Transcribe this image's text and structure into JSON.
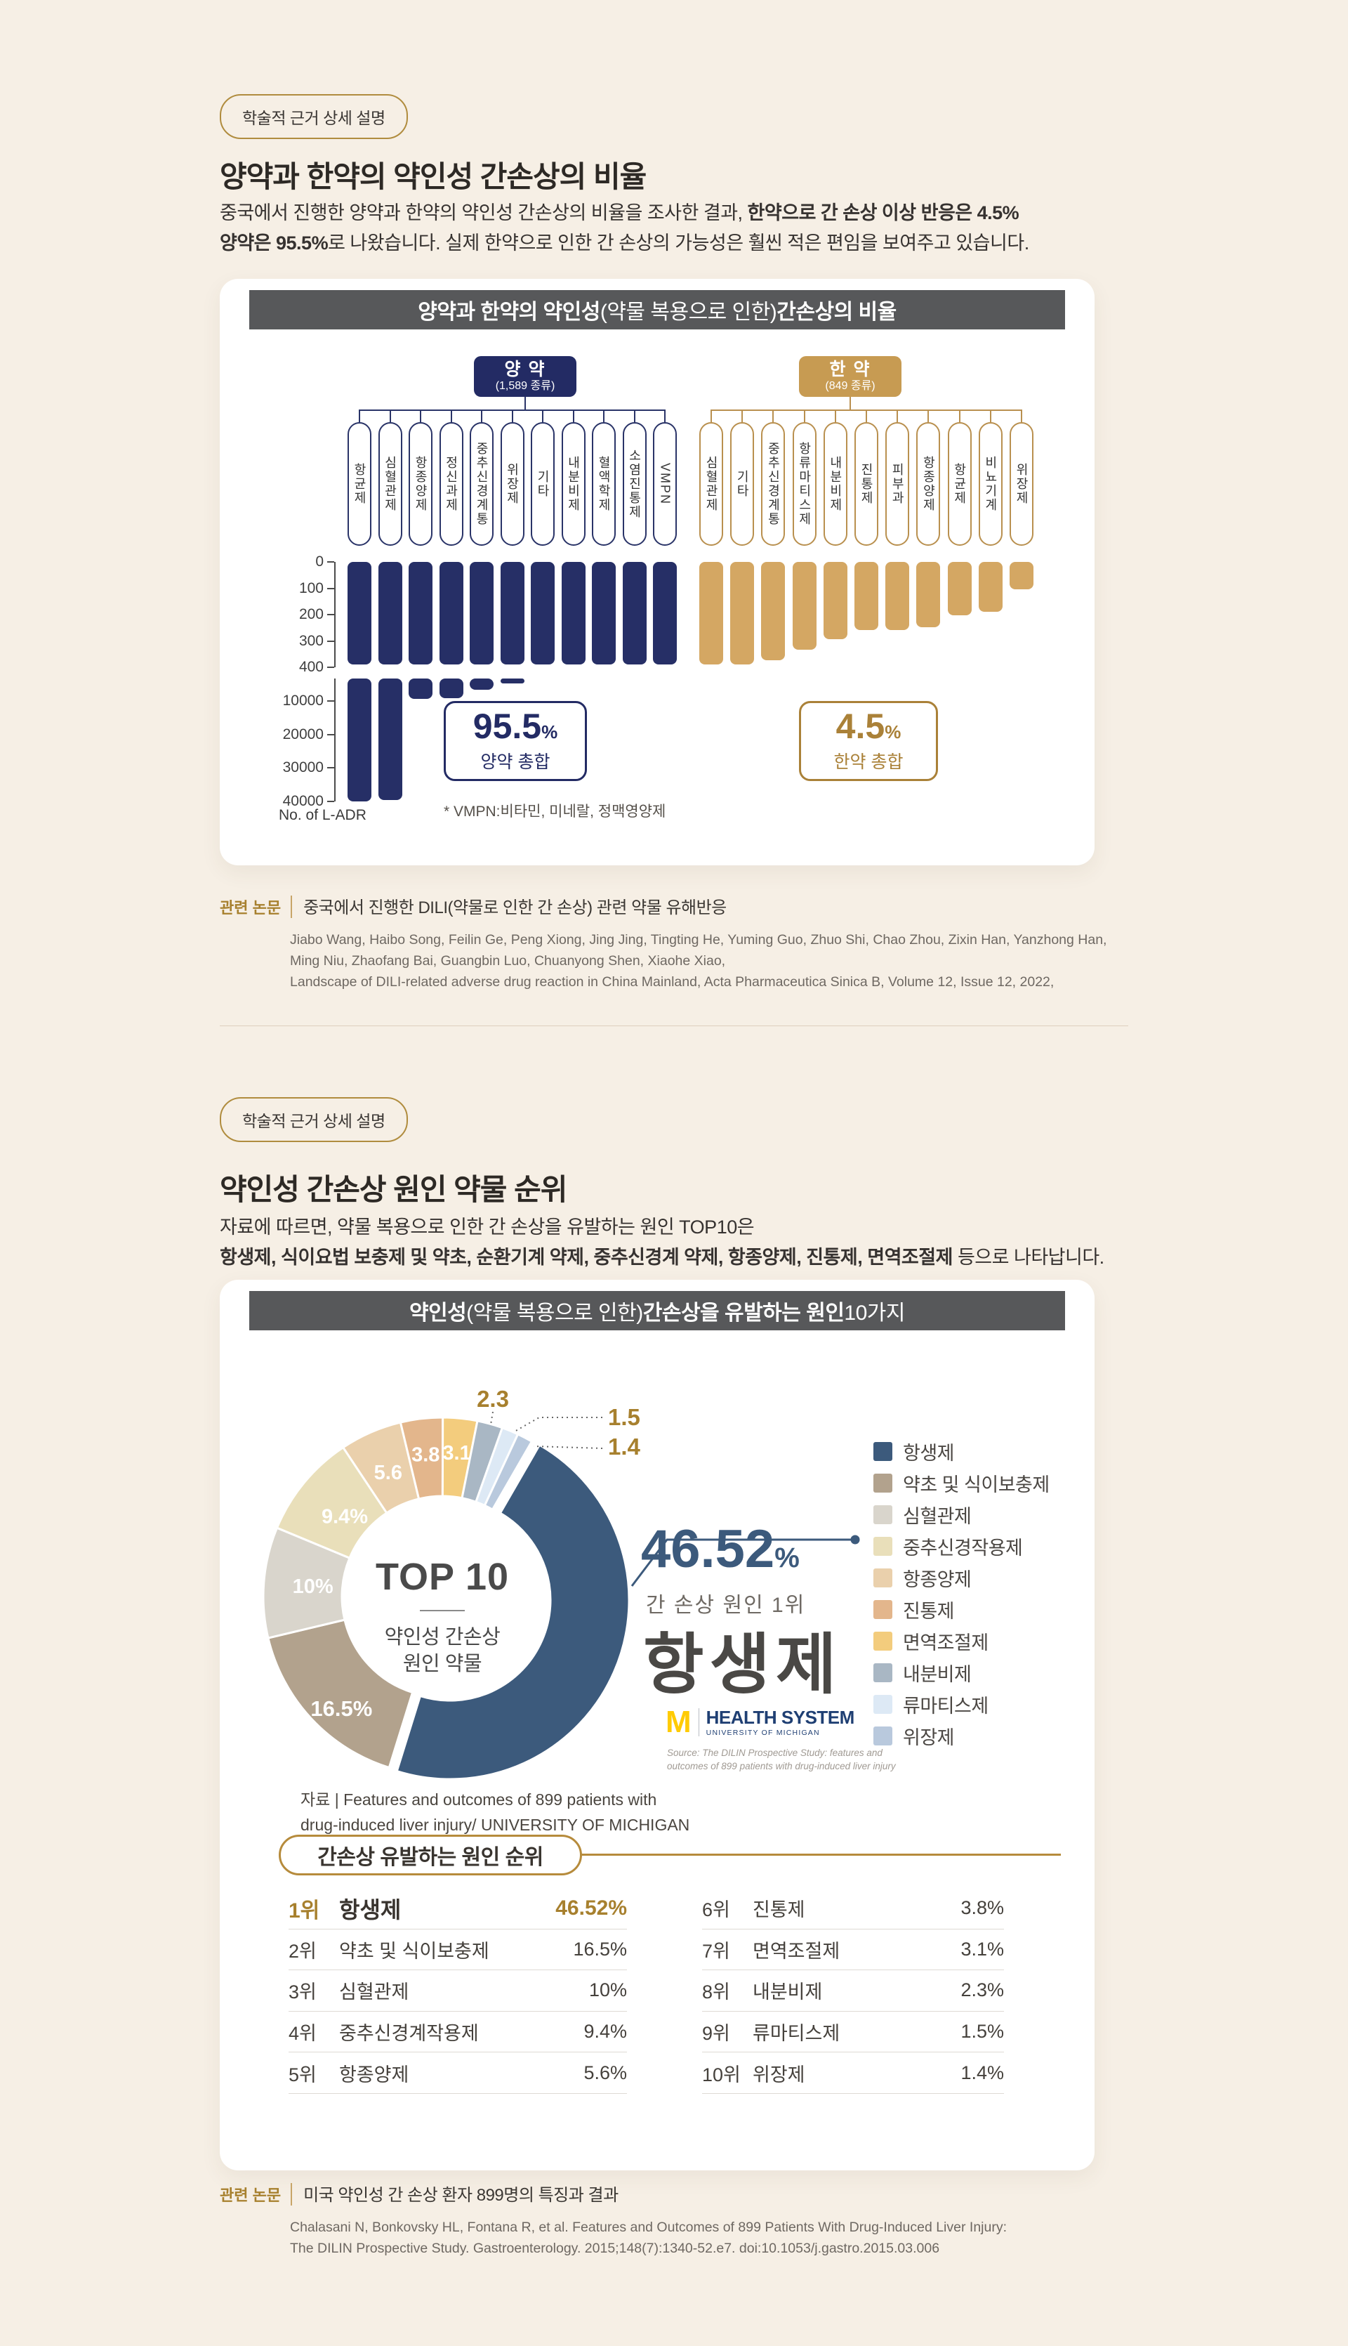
{
  "colors": {
    "page_bg": "#f6efe5",
    "gold_accent": "#b08c3e",
    "gold_text": "#a7802e",
    "navy": "#262f66",
    "navy_node": "#232b64",
    "gold_bar": "#d4a763",
    "gold_node": "#c79b52",
    "header_gray": "#57585a",
    "donut_navy": "#3c5a7c"
  },
  "section1": {
    "badge": "학술적 근거 상세 설명",
    "title": "양약과 한약의 약인성 간손상의 비율",
    "para": {
      "l1_normal": "중국에서 진행한 양약과 한약의 약인성 간손상의 비율을 조사한 결과, ",
      "l1_bold": "한약으로 간 손상 이상 반응은 4.5%",
      "l2_bold": "양약은 95.5%",
      "l2_normal": "로 나왔습니다. 실제 한약으로 인한 간 손상의 가능성은 훨씬 적은 편임을 보여주고 있습니다."
    },
    "chart_header": {
      "bold1": "양약과 한약의 약인성",
      "light": "(약물 복용으로 인한) ",
      "bold2": "간손상의 비율"
    },
    "summary_west": {
      "pct": "95.5",
      "unit": "%",
      "label": "양약 총합"
    },
    "summary_herb": {
      "pct": "4.5",
      "unit": "%",
      "label": "한약 총합"
    },
    "footnote": "* VMPN:비타민, 미네랄, 정맥영양제",
    "axis_caption": "No. of L-ADR",
    "citation": {
      "label": "관련 논문",
      "title": "중국에서 진행한 DILI(약물로 인한 간 손상) 관련 약물 유해반응",
      "lines": [
        "Jiabo Wang, Haibo Song, Feilin Ge, Peng Xiong, Jing Jing, Tingting He, Yuming Guo, Zhuo Shi, Chao Zhou, Zixin Han, Yanzhong Han,",
        "Ming Niu, Zhaofang Bai, Guangbin Luo, Chuanyong Shen, Xiaohe Xiao,",
        "Landscape of DILI-related adverse drug reaction in China Mainland, Acta Pharmaceutica Sinica B, Volume 12, Issue 12, 2022,"
      ]
    }
  },
  "section2": {
    "badge": "학술적 근거 상세 설명",
    "title": "약인성 간손상 원인 약물 순위",
    "para": {
      "l1_normal": "자료에 따르면, 약물 복용으로 인한 간 손상을 유발하는 원인 TOP10은",
      "l2_bold": "항생제, 식이요법 보충제 및 약초, 순환기계 약제, 중추신경계 약제, 항종양제, 진통제, 면역조절제",
      "l2_normal": " 등으로 나타납니다."
    },
    "chart_header": {
      "bold1": "약인성",
      "light": "(약물 복용으로 인한) ",
      "bold2": "간손상을 유발하는 원인 ",
      "light2": "10가지"
    },
    "donut_center": {
      "top": "TOP 10",
      "sub1": "약인성 간손상",
      "sub2": "원인 약물"
    },
    "callout": {
      "pct": "46.52",
      "unit": "%",
      "sub": "간 손상 원인 1위",
      "drug": "항생제"
    },
    "logo": {
      "m": "M",
      "title": "HEALTH SYSTEM",
      "sub": "UNIVERSITY OF MICHIGAN"
    },
    "source_note": [
      "Source: The DILIN Prospective Study:  features and",
      "outcomes of 899 patients with drug-induced liver injury"
    ],
    "data_note": [
      "자료 |  Features and outcomes of 899 patients with",
      "drug-induced liver injury/ UNIVERSITY OF MICHIGAN"
    ],
    "ranking": {
      "title": "간손상 유발하는 원인 순위",
      "rows_left": [
        {
          "rank": "1위",
          "name": "항생제",
          "value": "46.52%"
        },
        {
          "rank": "2위",
          "name": "약초 및 식이보충제",
          "value": "16.5%"
        },
        {
          "rank": "3위",
          "name": "심혈관제",
          "value": "10%"
        },
        {
          "rank": "4위",
          "name": "중추신경계작용제",
          "value": "9.4%"
        },
        {
          "rank": "5위",
          "name": "항종양제",
          "value": "5.6%"
        }
      ],
      "rows_right": [
        {
          "rank": "6위",
          "name": "진통제",
          "value": "3.8%"
        },
        {
          "rank": "7위",
          "name": "면역조절제",
          "value": "3.1%"
        },
        {
          "rank": "8위",
          "name": "내분비제",
          "value": "2.3%"
        },
        {
          "rank": "9위",
          "name": "류마티스제",
          "value": "1.5%"
        },
        {
          "rank": "10위",
          "name": "위장제",
          "value": "1.4%"
        }
      ]
    },
    "citation": {
      "label": "관련 논문",
      "title": "미국 약인성 간 손상 환자 899명의 특징과 결과",
      "lines": [
        "Chalasani N, Bonkovsky HL, Fontana R, et al. Features and Outcomes of 899 Patients With Drug-Induced Liver Injury:",
        "The DILIN Prospective Study. Gastroenterology. 2015;148(7):1340-52.e7. doi:10.1053/j.gastro.2015.03.006"
      ]
    }
  },
  "chart_data": [
    {
      "type": "bar",
      "title": "양약과 한약의 약인성(약물 복용으로 인한) 간손상의 비율",
      "ylabel": "No. of L-ADR",
      "y_axis": {
        "upper_ticks": [
          0,
          100,
          200,
          300,
          400
        ],
        "lower_ticks": [
          10000,
          20000,
          30000,
          40000
        ],
        "axis_break_between": [
          400,
          10000
        ],
        "direction": "downward"
      },
      "groups": [
        {
          "name": "양 약",
          "count_label": "(1,589 종류)",
          "total_share": "95.5%",
          "color": "#262f66",
          "categories": [
            "항균제",
            "심혈관제",
            "항종양제",
            "정신과제",
            "중추신경계통",
            "위장제",
            "기타",
            "내분비제",
            "혈액학제",
            "소염진통제",
            "VMPN"
          ],
          "values": [
            40000,
            39500,
            9300,
            9200,
            6700,
            4800,
            2500,
            2200,
            1900,
            1600,
            1300
          ],
          "note": "values estimated from gridlines; bars clipped by axis break"
        },
        {
          "name": "한 약",
          "count_label": "(849 종류)",
          "total_share": "4.5%",
          "color": "#d4a763",
          "categories": [
            "심혈관제",
            "기타",
            "중추신경계통",
            "항류마티스제",
            "내분비제",
            "진통제",
            "피부과",
            "항종양제",
            "항균제",
            "비뇨기계",
            "위장제"
          ],
          "values": [
            388,
            388,
            372,
            332,
            292,
            258,
            258,
            248,
            202,
            188,
            104
          ],
          "note": "values estimated from gridlines"
        }
      ]
    },
    {
      "type": "pie",
      "subtype": "donut",
      "title": "약인성(약물 복용으로 인한) 간손상을 유발하는 원인 10가지",
      "labels": [
        "항생제",
        "약초 및 식이보충제",
        "심혈관제",
        "중추신경작용제",
        "항종양제",
        "진통제",
        "면역조절제",
        "내분비제",
        "류마티스제",
        "위장제"
      ],
      "values": [
        46.52,
        16.5,
        10,
        9.4,
        5.6,
        3.8,
        3.1,
        2.3,
        1.5,
        1.4
      ],
      "colors": [
        "#3c5a7c",
        "#b2a28d",
        "#d9d5cc",
        "#e9dfba",
        "#ead0ac",
        "#e3b68c",
        "#f3cc7d",
        "#a9b7c4",
        "#dde9f5",
        "#b9c9dd"
      ],
      "slice_labels": [
        "",
        "16.5%",
        "10%",
        "9.4%",
        "5.6",
        "3.8",
        "3.1"
      ],
      "outer_labels": [
        "2.3",
        "1.5",
        "1.4"
      ],
      "start_angle_deg": 30,
      "exploded_slice": "항생제",
      "center_text": [
        "TOP 10",
        "약인성 간손상",
        "원인 약물"
      ],
      "legend_position": "right",
      "highlight": {
        "label": "항생제",
        "value": "46.52%",
        "caption": "간 손상 원인 1위"
      }
    }
  ]
}
